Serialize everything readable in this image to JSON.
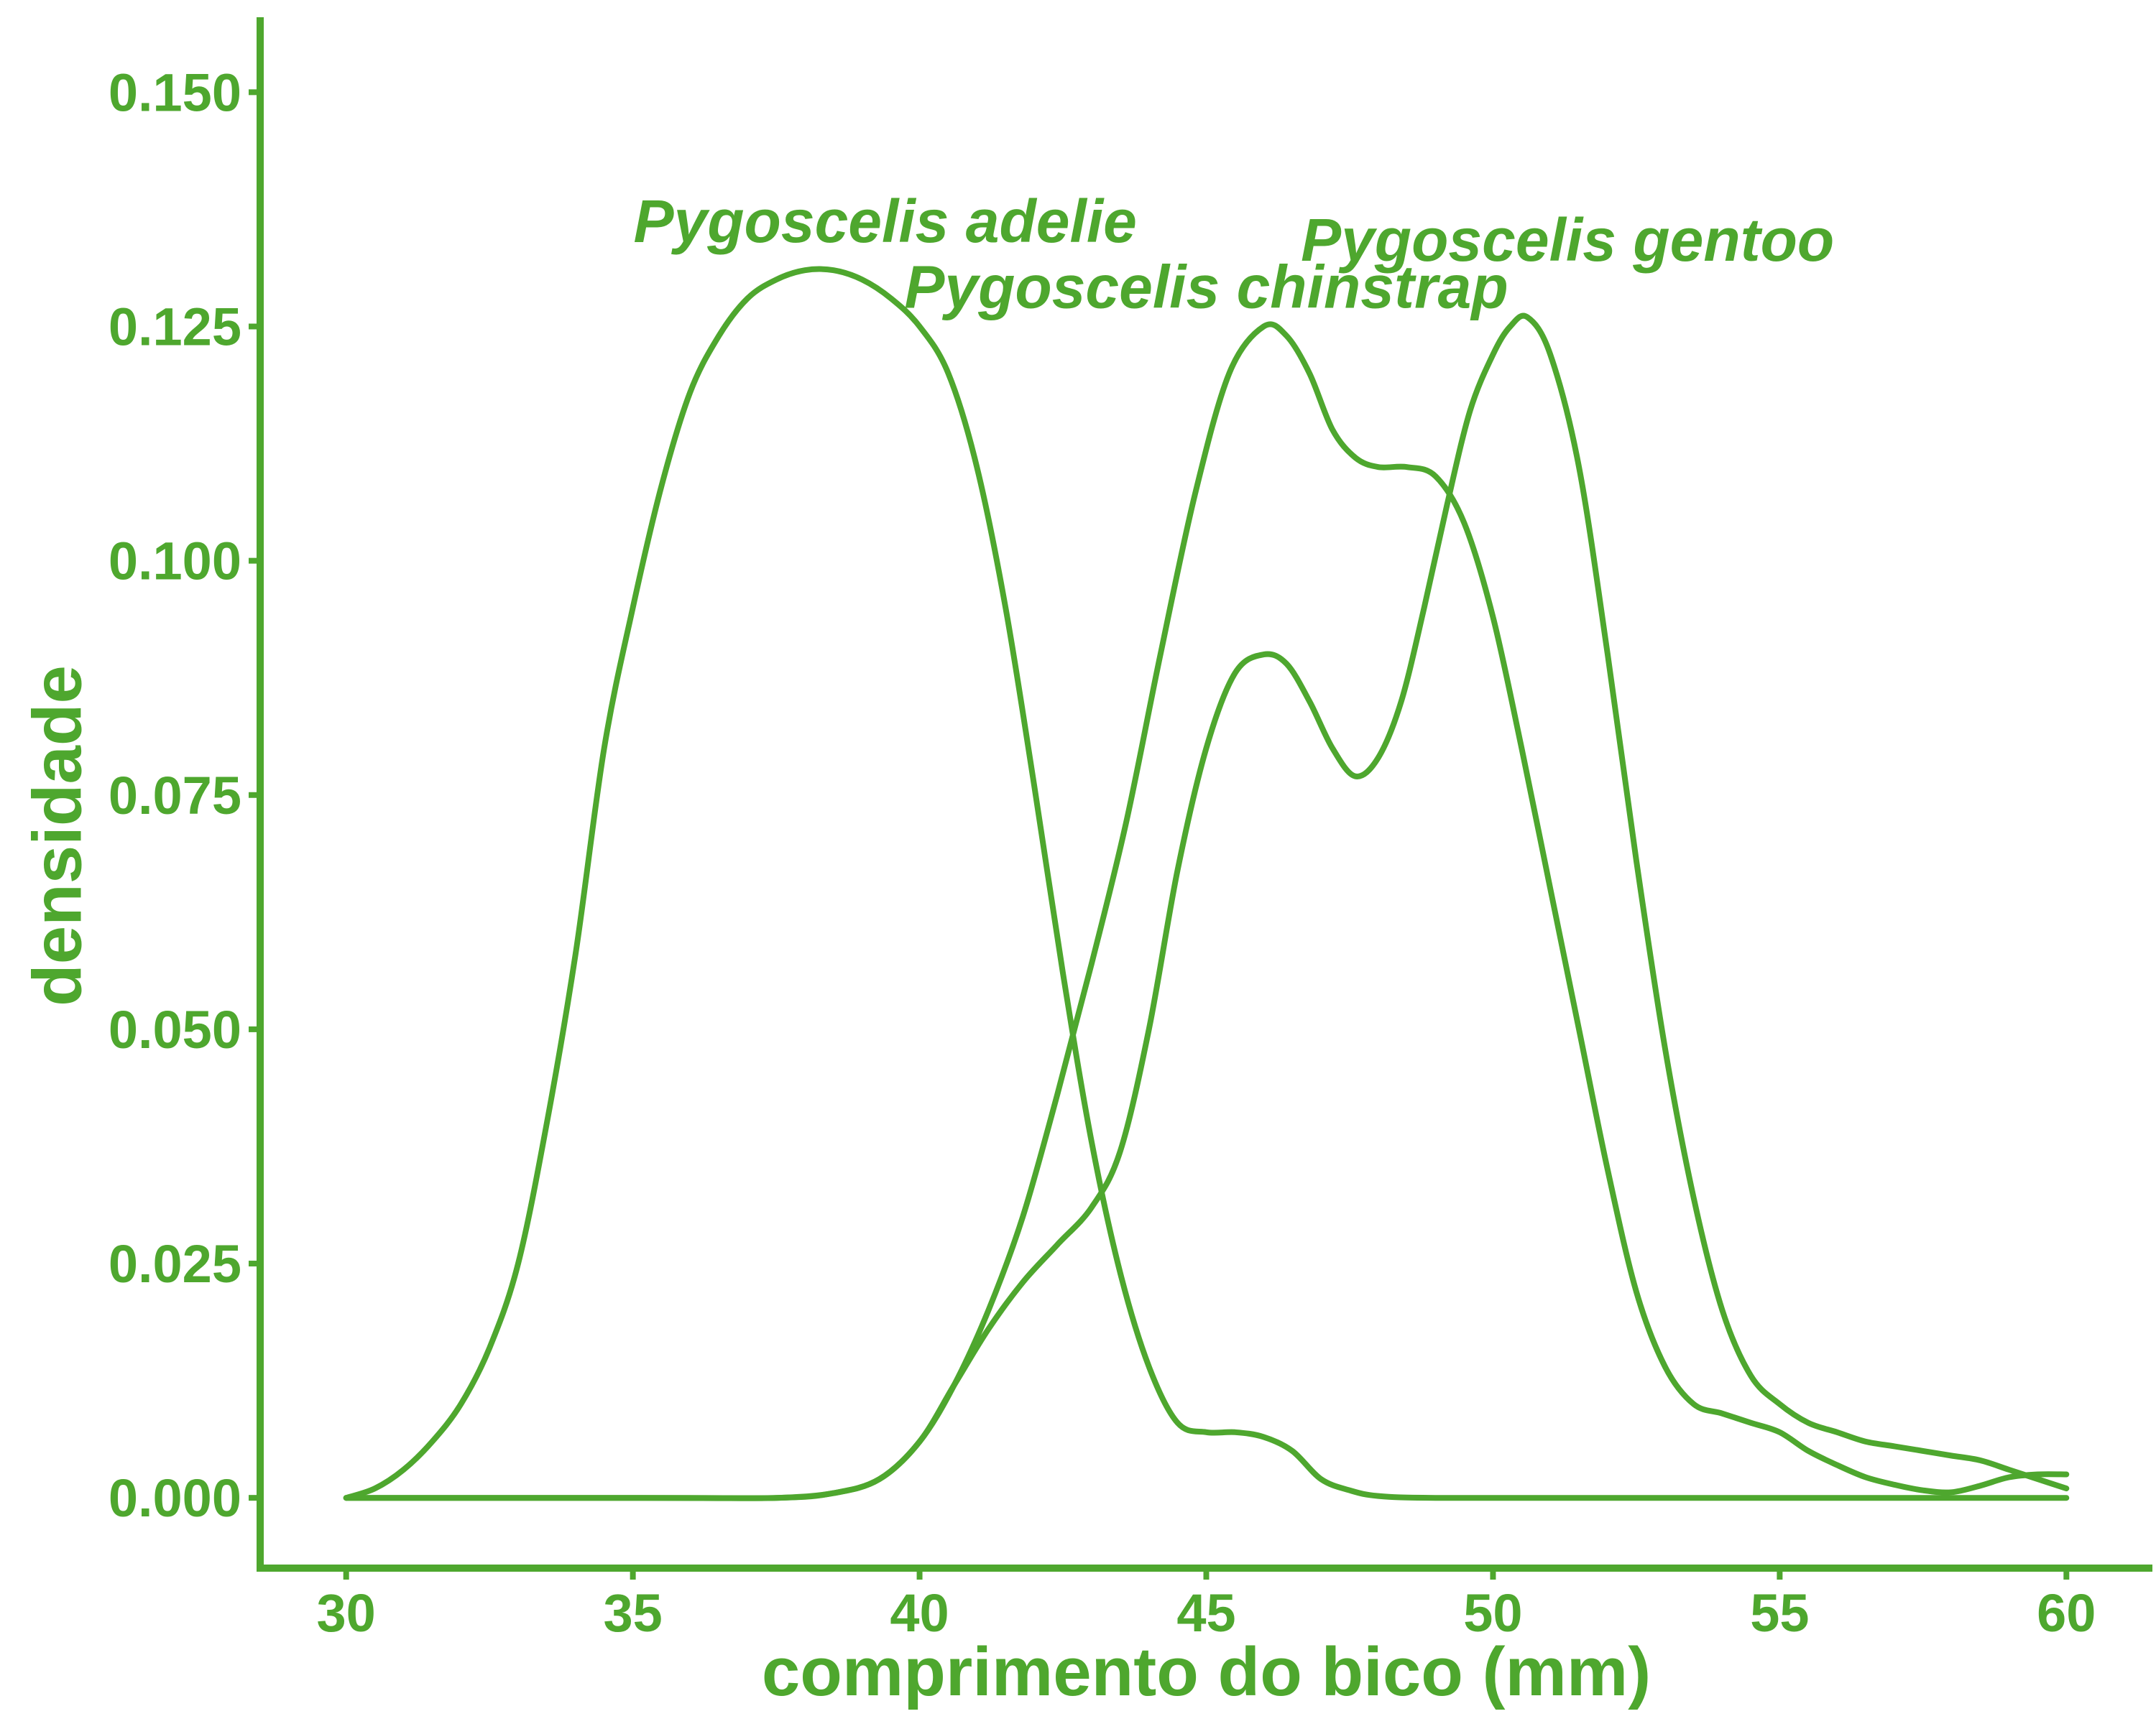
{
  "chart_data": {
    "type": "line",
    "xlabel": "comprimento do bico (mm)",
    "ylabel": "densidade",
    "xlim": [
      28.5,
      61.5
    ],
    "ylim": [
      -0.0075,
      0.158
    ],
    "x_ticks": [
      {
        "value": 30,
        "label": "30"
      },
      {
        "value": 35,
        "label": "35"
      },
      {
        "value": 40,
        "label": "40"
      },
      {
        "value": 45,
        "label": "45"
      },
      {
        "value": 50,
        "label": "50"
      },
      {
        "value": 55,
        "label": "55"
      },
      {
        "value": 60,
        "label": "60"
      }
    ],
    "y_ticks": [
      {
        "value": 0.0,
        "label": "0.000"
      },
      {
        "value": 0.025,
        "label": "0.025"
      },
      {
        "value": 0.05,
        "label": "0.050"
      },
      {
        "value": 0.075,
        "label": "0.075"
      },
      {
        "value": 0.1,
        "label": "0.100"
      },
      {
        "value": 0.125,
        "label": "0.125"
      },
      {
        "value": 0.15,
        "label": "0.150"
      }
    ],
    "grid": false,
    "legend": "none",
    "color": "#4ea72e",
    "series": [
      {
        "name": "Pygoscelis adelie",
        "label_at": [
          39.4,
          0.134
        ],
        "points": [
          [
            30,
            0
          ],
          [
            30.5,
            0.001
          ],
          [
            31,
            0.003
          ],
          [
            31.5,
            0.006
          ],
          [
            32,
            0.01
          ],
          [
            32.5,
            0.016
          ],
          [
            33,
            0.025
          ],
          [
            33.5,
            0.04
          ],
          [
            34,
            0.058
          ],
          [
            34.5,
            0.08
          ],
          [
            35,
            0.095
          ],
          [
            35.5,
            0.108
          ],
          [
            36,
            0.118
          ],
          [
            36.5,
            0.124
          ],
          [
            37,
            0.128
          ],
          [
            37.5,
            0.13
          ],
          [
            38,
            0.131
          ],
          [
            38.5,
            0.131
          ],
          [
            39,
            0.13
          ],
          [
            39.5,
            0.128
          ],
          [
            40,
            0.125
          ],
          [
            40.5,
            0.12
          ],
          [
            41,
            0.11
          ],
          [
            41.5,
            0.095
          ],
          [
            42,
            0.076
          ],
          [
            42.5,
            0.056
          ],
          [
            43,
            0.038
          ],
          [
            43.5,
            0.024
          ],
          [
            44,
            0.014
          ],
          [
            44.5,
            0.008
          ],
          [
            45,
            0.007
          ],
          [
            45.5,
            0.007
          ],
          [
            46,
            0.0065
          ],
          [
            46.5,
            0.005
          ],
          [
            47,
            0.002
          ],
          [
            47.5,
            0.0008
          ],
          [
            48,
            0.0002
          ],
          [
            49,
            0
          ],
          [
            52,
            0
          ],
          [
            56,
            0
          ],
          [
            60,
            0
          ]
        ]
      },
      {
        "name": "Pygoscelis chinstrap",
        "label_at": [
          45.0,
          0.127
        ],
        "points": [
          [
            30,
            0
          ],
          [
            34,
            0
          ],
          [
            36,
            0
          ],
          [
            37.5,
            0
          ],
          [
            38.5,
            0.0005
          ],
          [
            39.3,
            0.002
          ],
          [
            40,
            0.006
          ],
          [
            40.6,
            0.012
          ],
          [
            41.2,
            0.02
          ],
          [
            41.8,
            0.03
          ],
          [
            42.4,
            0.043
          ],
          [
            43,
            0.057
          ],
          [
            43.6,
            0.072
          ],
          [
            44.2,
            0.09
          ],
          [
            44.8,
            0.107
          ],
          [
            45.4,
            0.12
          ],
          [
            46,
            0.125
          ],
          [
            46.4,
            0.124
          ],
          [
            46.8,
            0.12
          ],
          [
            47.2,
            0.114
          ],
          [
            47.6,
            0.111
          ],
          [
            48,
            0.11
          ],
          [
            48.5,
            0.11
          ],
          [
            49,
            0.109
          ],
          [
            49.5,
            0.104
          ],
          [
            50,
            0.094
          ],
          [
            50.5,
            0.08
          ],
          [
            51,
            0.065
          ],
          [
            51.5,
            0.05
          ],
          [
            52,
            0.035
          ],
          [
            52.5,
            0.022
          ],
          [
            53,
            0.014
          ],
          [
            53.5,
            0.01
          ],
          [
            54,
            0.009
          ],
          [
            54.5,
            0.008
          ],
          [
            55,
            0.007
          ],
          [
            55.5,
            0.005
          ],
          [
            56,
            0.0035
          ],
          [
            56.5,
            0.0022
          ],
          [
            57,
            0.0014
          ],
          [
            57.5,
            0.0008
          ],
          [
            58,
            0.0006
          ],
          [
            58.5,
            0.0013
          ],
          [
            59,
            0.0022
          ],
          [
            59.5,
            0.0025
          ],
          [
            60,
            0.0025
          ]
        ]
      },
      {
        "name": "Pygoscelis gentoo",
        "label_at": [
          51.3,
          0.132
        ],
        "points": [
          [
            30,
            0
          ],
          [
            35,
            0
          ],
          [
            37.5,
            0
          ],
          [
            38.5,
            0.0005
          ],
          [
            39.3,
            0.002
          ],
          [
            40,
            0.006
          ],
          [
            40.6,
            0.012
          ],
          [
            41.2,
            0.018
          ],
          [
            41.8,
            0.023
          ],
          [
            42.4,
            0.027
          ],
          [
            43,
            0.031
          ],
          [
            43.5,
            0.037
          ],
          [
            44,
            0.05
          ],
          [
            44.5,
            0.067
          ],
          [
            45,
            0.08
          ],
          [
            45.5,
            0.088
          ],
          [
            46,
            0.09
          ],
          [
            46.4,
            0.089
          ],
          [
            46.8,
            0.085
          ],
          [
            47.2,
            0.08
          ],
          [
            47.6,
            0.077
          ],
          [
            48,
            0.079
          ],
          [
            48.4,
            0.085
          ],
          [
            48.8,
            0.095
          ],
          [
            49.2,
            0.106
          ],
          [
            49.6,
            0.116
          ],
          [
            50,
            0.122
          ],
          [
            50.3,
            0.125
          ],
          [
            50.6,
            0.126
          ],
          [
            51,
            0.122
          ],
          [
            51.5,
            0.11
          ],
          [
            52,
            0.09
          ],
          [
            52.5,
            0.068
          ],
          [
            53,
            0.048
          ],
          [
            53.5,
            0.032
          ],
          [
            54,
            0.02
          ],
          [
            54.5,
            0.013
          ],
          [
            55,
            0.01
          ],
          [
            55.5,
            0.008
          ],
          [
            56,
            0.007
          ],
          [
            56.5,
            0.006
          ],
          [
            57,
            0.0055
          ],
          [
            57.5,
            0.005
          ],
          [
            58,
            0.0045
          ],
          [
            58.5,
            0.004
          ],
          [
            59,
            0.003
          ],
          [
            59.5,
            0.002
          ],
          [
            60,
            0.001
          ]
        ]
      }
    ]
  }
}
